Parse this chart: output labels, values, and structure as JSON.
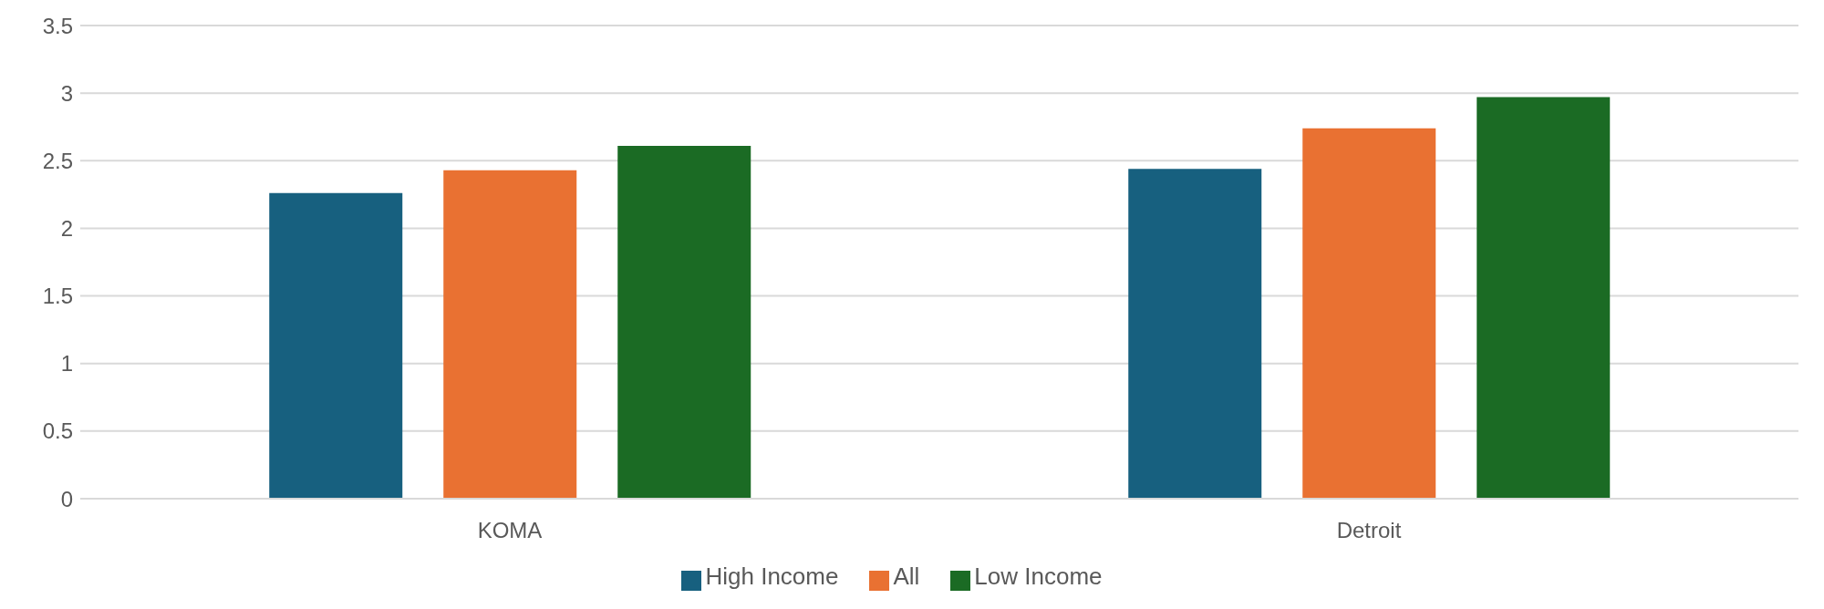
{
  "chart_data": {
    "type": "bar",
    "categories": [
      "KOMA",
      "Detroit"
    ],
    "series": [
      {
        "name": "High Income",
        "color": "#17607f",
        "values": [
          2.26,
          2.44
        ]
      },
      {
        "name": "All",
        "color": "#e97132",
        "values": [
          2.43,
          2.74
        ]
      },
      {
        "name": "Low Income",
        "color": "#1b6b24",
        "values": [
          2.61,
          2.97
        ]
      }
    ],
    "ylim": [
      0,
      3.5
    ],
    "yticks": [
      0,
      0.5,
      1,
      1.5,
      2,
      2.5,
      3,
      3.5
    ],
    "grid": "y",
    "legend": "bottom"
  }
}
